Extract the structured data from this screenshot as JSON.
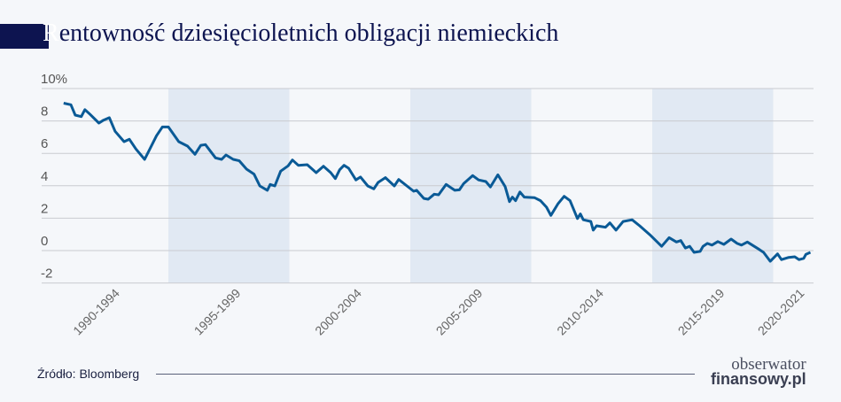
{
  "title": {
    "first_letter": "R",
    "rest": "entowność dziesięcioletnich obligacji niemieckich"
  },
  "source": "Źródło: Bloomberg",
  "logo": {
    "line1": "obserwator",
    "line2": "finansowy.pl"
  },
  "colors": {
    "line": "#0a5a96",
    "band": "#e1e9f3",
    "background": "#f5f7fa",
    "title": "#0d1450",
    "grid": "#c9cbd0"
  },
  "chart_data": {
    "type": "line",
    "title": "Rentowność dziesięcioletnich obligacji niemieckich",
    "xlabel": "",
    "ylabel": "",
    "ylim": [
      -2,
      10
    ],
    "xlim": [
      1990,
      2021.6
    ],
    "grid": true,
    "y_ticks": [
      {
        "v": 10,
        "label": "10%"
      },
      {
        "v": 8,
        "label": "8"
      },
      {
        "v": 6,
        "label": "6"
      },
      {
        "v": 4,
        "label": "4"
      },
      {
        "v": 2,
        "label": "2"
      },
      {
        "v": 0,
        "label": "0"
      },
      {
        "v": -2,
        "label": "-2"
      }
    ],
    "x_categories": [
      {
        "label": "1990-1994",
        "from": 1990,
        "to": 1995,
        "shaded": false
      },
      {
        "label": "1995-1999",
        "from": 1995,
        "to": 2000,
        "shaded": true
      },
      {
        "label": "2000-2004",
        "from": 2000,
        "to": 2005,
        "shaded": false
      },
      {
        "label": "2005-2009",
        "from": 2005,
        "to": 2010,
        "shaded": true
      },
      {
        "label": "2010-2014",
        "from": 2010,
        "to": 2015,
        "shaded": false
      },
      {
        "label": "2015-2019",
        "from": 2015,
        "to": 2020,
        "shaded": true
      },
      {
        "label": "2020-2021",
        "from": 2020,
        "to": 2021.6,
        "shaded": false
      }
    ],
    "series": [
      {
        "x": [
          1990.67,
          1990.97,
          1991.15,
          1991.4,
          1991.55,
          1991.77,
          1992.13,
          1992.32,
          1992.56,
          1992.8,
          1993.17,
          1993.39,
          1993.66,
          1994.02,
          1994.51,
          1994.75,
          1995.0,
          1995.43,
          1995.79,
          1996.1,
          1996.34,
          1996.53,
          1996.95,
          1997.2,
          1997.38,
          1997.68,
          1997.93,
          1998.23,
          1998.54,
          1998.78,
          1999.09,
          1999.21,
          1999.4,
          1999.64,
          1999.95,
          2000.13,
          2000.37,
          2000.74,
          2001.11,
          2001.41,
          2001.71,
          2001.9,
          2002.08,
          2002.26,
          2002.45,
          2002.75,
          2002.94,
          2003.24,
          2003.49,
          2003.67,
          2003.97,
          2004.34,
          2004.52,
          2005.14,
          2005.26,
          2005.56,
          2005.74,
          2005.99,
          2006.17,
          2006.48,
          2006.84,
          2007.03,
          2007.21,
          2007.58,
          2007.82,
          2008.12,
          2008.31,
          2008.62,
          2008.92,
          2009.1,
          2009.22,
          2009.35,
          2009.53,
          2009.71,
          2010.14,
          2010.38,
          2010.63,
          2010.81,
          2011.11,
          2011.36,
          2011.6,
          2011.91,
          2012.03,
          2012.15,
          2012.46,
          2012.56,
          2012.7,
          2013.07,
          2013.25,
          2013.5,
          2013.8,
          2014.17,
          2014.48,
          2014.9,
          2015.39,
          2015.7,
          2016.0,
          2016.18,
          2016.37,
          2016.55,
          2016.73,
          2016.98,
          2017.1,
          2017.28,
          2017.47,
          2017.71,
          2017.96,
          2018.26,
          2018.51,
          2018.69,
          2018.93,
          2019.42,
          2019.6,
          2019.88,
          2020.18,
          2020.34,
          2020.64,
          2020.89,
          2021.07,
          2021.26,
          2021.35,
          2021.54
        ],
        "y": [
          9.1,
          9.0,
          8.36,
          8.27,
          8.7,
          8.4,
          7.87,
          8.05,
          8.2,
          7.36,
          6.72,
          6.87,
          6.27,
          5.63,
          7.09,
          7.63,
          7.63,
          6.72,
          6.45,
          5.94,
          6.5,
          6.54,
          5.72,
          5.63,
          5.9,
          5.63,
          5.54,
          5.03,
          4.72,
          3.99,
          3.72,
          4.08,
          3.99,
          4.9,
          5.23,
          5.59,
          5.26,
          5.3,
          4.81,
          5.21,
          4.81,
          4.44,
          4.99,
          5.26,
          5.08,
          4.36,
          4.54,
          3.99,
          3.81,
          4.21,
          4.5,
          3.99,
          4.39,
          3.66,
          3.72,
          3.22,
          3.17,
          3.48,
          3.44,
          4.08,
          3.72,
          3.75,
          4.14,
          4.63,
          4.36,
          4.26,
          3.93,
          4.68,
          3.95,
          3.02,
          3.3,
          3.08,
          3.62,
          3.3,
          3.26,
          3.08,
          2.68,
          2.17,
          2.9,
          3.35,
          3.08,
          1.98,
          2.26,
          1.9,
          1.8,
          1.26,
          1.53,
          1.44,
          1.71,
          1.26,
          1.8,
          1.9,
          1.53,
          0.98,
          0.26,
          0.8,
          0.53,
          0.62,
          0.16,
          0.26,
          -0.11,
          -0.05,
          0.26,
          0.44,
          0.34,
          0.56,
          0.38,
          0.71,
          0.44,
          0.34,
          0.53,
          0.07,
          -0.11,
          -0.66,
          -0.2,
          -0.56,
          -0.42,
          -0.38,
          -0.56,
          -0.48,
          -0.23,
          -0.11
        ]
      }
    ]
  }
}
